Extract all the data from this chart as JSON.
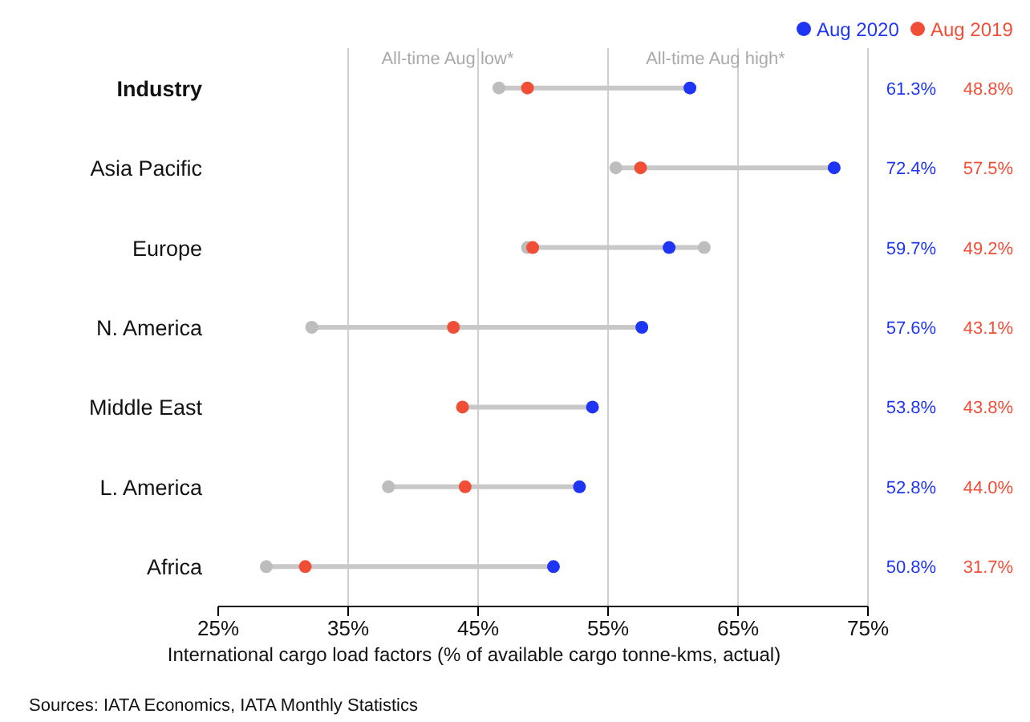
{
  "chart_data": {
    "type": "scatter",
    "orientation": "horizontal",
    "xlabel": "International cargo load factors (% of available cargo tonne-kms, actual)",
    "categories": [
      "Industry",
      "Asia Pacific",
      "Europe",
      "N. America",
      "Middle East",
      "L. America",
      "Africa"
    ],
    "series": [
      {
        "color": "#bdbdbd",
        "values": [
          46.6,
          55.6,
          48.8,
          32.2,
          null,
          38.1,
          28.7
        ]
      },
      {
        "color": "#bdbdbd",
        "values": [
          null,
          null,
          62.4,
          null,
          null,
          null,
          null
        ]
      },
      {
        "name": "Aug 2019",
        "color": "#f04e37",
        "values": [
          48.8,
          57.5,
          49.2,
          43.1,
          43.8,
          44.0,
          31.7
        ],
        "value_labels": [
          "48.8%",
          "57.5%",
          "49.2%",
          "43.1%",
          "43.8%",
          "44.0%",
          "31.7%"
        ]
      },
      {
        "name": "Aug 2020",
        "color": "#1f35f5",
        "values": [
          61.3,
          72.4,
          59.7,
          57.6,
          53.8,
          52.8,
          50.8
        ],
        "value_labels": [
          "61.3%",
          "72.4%",
          "59.7%",
          "57.6%",
          "53.8%",
          "52.8%",
          "50.8%"
        ]
      }
    ],
    "xlim": [
      25,
      75
    ],
    "xticks": [
      {
        "value": 25,
        "label": "25%"
      },
      {
        "value": 35,
        "label": "35%"
      },
      {
        "value": 45,
        "label": "45%"
      },
      {
        "value": 55,
        "label": "55%"
      },
      {
        "value": 65,
        "label": "65%"
      },
      {
        "value": 75,
        "label": "75%"
      }
    ],
    "grid": "x",
    "marker": "circle",
    "legend": "top right",
    "annotations": [
      "All-time Aug low*",
      "All-time Aug high*",
      "Sources: IATA Economics, IATA Monthly Statistics"
    ]
  }
}
